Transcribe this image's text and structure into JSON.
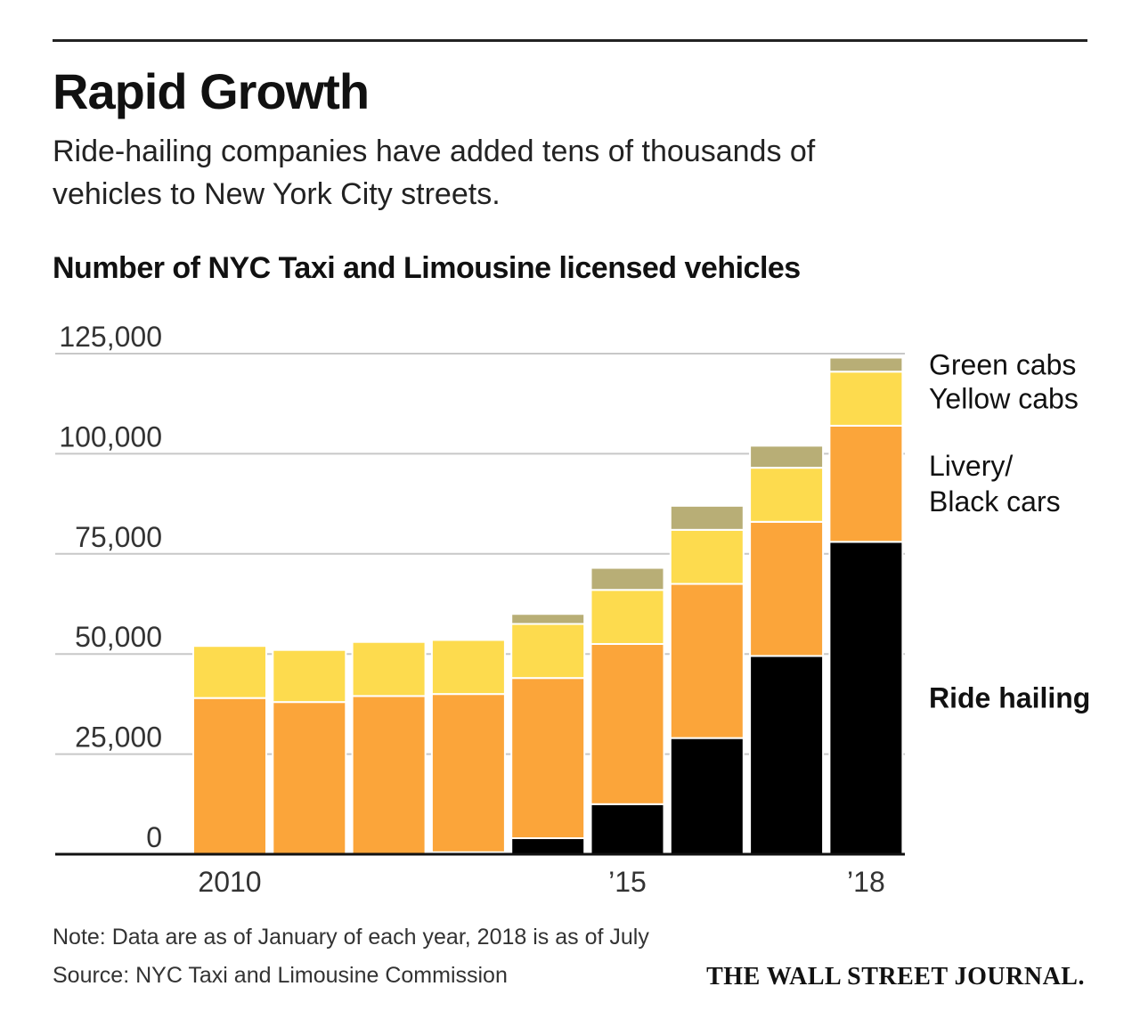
{
  "header": {
    "title": "Rapid Growth",
    "subtitle": "Ride-hailing companies have added tens of thousands of vehicles to New York City streets."
  },
  "chart_data": {
    "type": "bar",
    "stacked": true,
    "title": "Number of NYC Taxi and Limousine licensed vehicles",
    "categories": [
      "2010",
      "2011",
      "2012",
      "2013",
      "2014",
      "2015",
      "2016",
      "2017",
      "2018"
    ],
    "x_tick_labels": [
      "2010",
      "",
      "",
      "",
      "",
      "’15",
      "",
      "",
      "’18"
    ],
    "ylim": [
      0,
      125000
    ],
    "y_ticks": [
      0,
      25000,
      50000,
      75000,
      100000,
      125000
    ],
    "y_tick_labels": [
      "0",
      "25,000",
      "50,000",
      "75,000",
      "100,000",
      "125,000"
    ],
    "grid": "horizontal",
    "legend": "right, labels beside the 2018 bar",
    "series": [
      {
        "name": "Ride hailing",
        "color": "#000000",
        "values": [
          0,
          0,
          0,
          500,
          4000,
          12500,
          29000,
          49500,
          78000
        ]
      },
      {
        "name": "Livery/ Black cars",
        "color": "#FBA53A",
        "values": [
          39000,
          38000,
          39500,
          39500,
          40000,
          40000,
          38500,
          33500,
          29000
        ]
      },
      {
        "name": "Yellow cabs",
        "color": "#FDDB4E",
        "values": [
          13000,
          13000,
          13500,
          13500,
          13500,
          13500,
          13500,
          13500,
          13500
        ]
      },
      {
        "name": "Green cabs",
        "color": "#B8AE76",
        "values": [
          0,
          0,
          0,
          0,
          2500,
          5500,
          6000,
          5500,
          3500
        ]
      }
    ]
  },
  "footer": {
    "note": "Note: Data are as of January of each year, 2018 is as of July",
    "source": "Source: NYC Taxi and Limousine Commission",
    "logo": "THE WALL STREET JOURNAL."
  }
}
